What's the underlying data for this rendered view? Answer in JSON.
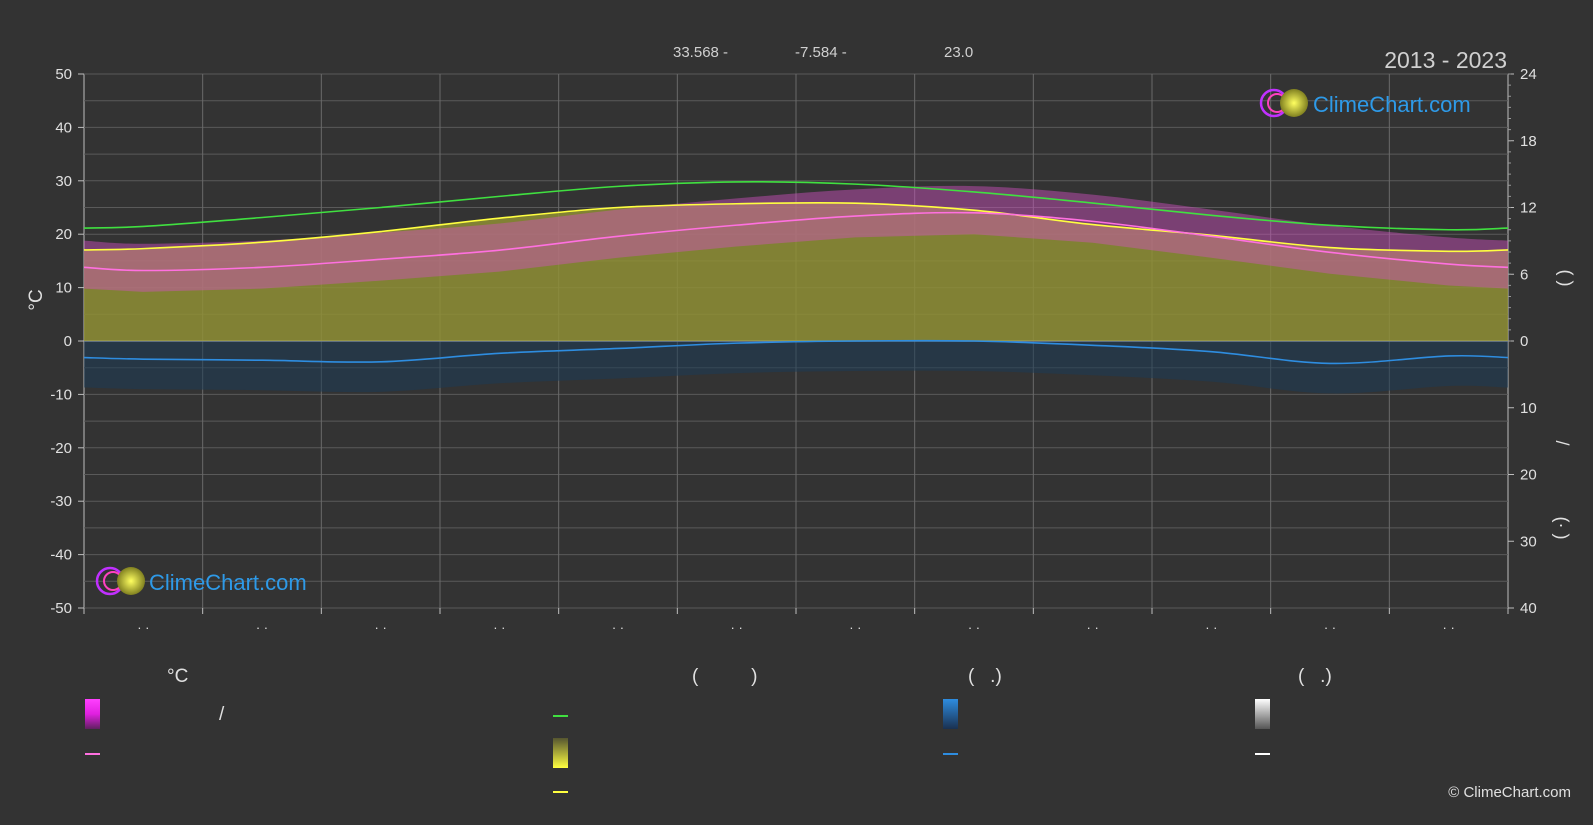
{
  "header": {
    "lat_label": "33.568 -",
    "lon_label": "-7.584 -",
    "elev_label": "23.0",
    "period": "2013 - 2023"
  },
  "brand": {
    "name": "ClimeChart.com",
    "copyright": "© ClimeChart.com"
  },
  "colors": {
    "background": "#333333",
    "daylight": "#40e040",
    "sunshine": "#ffff40",
    "max_temp": "#ff70e0",
    "precip": "#2e8de0",
    "temp_band": "#e040e0",
    "sun_band": "#8a8a30"
  },
  "chart_data": {
    "type": "line",
    "title": "",
    "xlabel": "",
    "ylabel": "°C",
    "ylim": [
      -50,
      50
    ],
    "yticks": [
      50,
      40,
      30,
      20,
      10,
      0,
      -10,
      -20,
      -30,
      -40,
      -50
    ],
    "y2_upper_ticks": [
      "24",
      "18",
      "12",
      "6",
      "0"
    ],
    "y2_lower_ticks": [
      "10",
      "20",
      "30",
      "40"
    ],
    "y2_upper_label": "(        )",
    "y2_lower_label": "/\n\n(·   )",
    "months": 12,
    "month_tick_labels": [
      "· ·",
      "· ·",
      "· ·",
      "· ·",
      "· ·",
      "· ·",
      "· ·",
      "· ·",
      "· ·",
      "· ·",
      "· ·",
      "· ·"
    ],
    "series": [
      {
        "key": "daylight",
        "color": "#40e040",
        "axis": "hours",
        "values": [
          10.3,
          11.1,
          12.0,
          13.0,
          13.9,
          14.3,
          14.1,
          13.4,
          12.4,
          11.3,
          10.4,
          10.0
        ]
      },
      {
        "key": "sunshine_temp_scale",
        "color": "#ffff40",
        "axis": "celsius",
        "values": [
          17.3,
          18.5,
          20.5,
          23.0,
          25.0,
          25.7,
          25.8,
          24.5,
          21.8,
          19.8,
          17.5,
          16.8
        ]
      },
      {
        "key": "max_temp",
        "color": "#ff70e0",
        "axis": "celsius",
        "values": [
          13.2,
          13.8,
          15.3,
          17.0,
          19.6,
          21.7,
          23.4,
          24.0,
          22.4,
          19.6,
          16.6,
          14.4
        ]
      },
      {
        "key": "precip",
        "color": "#2e8de0",
        "axis": "celsius",
        "values": [
          -3.4,
          -3.6,
          -3.9,
          -2.3,
          -1.4,
          -0.4,
          0.0,
          0.0,
          -0.8,
          -2.0,
          -4.2,
          -2.8
        ]
      }
    ]
  },
  "legend": {
    "col1": {
      "heading": "°C",
      "row1": "/",
      "row2": ""
    },
    "col2": {
      "heading": "(          )",
      "row1": "",
      "row2": "",
      "row3": ""
    },
    "col3": {
      "heading": "(   .)",
      "row1": "",
      "row2": ""
    },
    "col4": {
      "heading": "(   .)",
      "row1": "",
      "row2": ""
    }
  }
}
